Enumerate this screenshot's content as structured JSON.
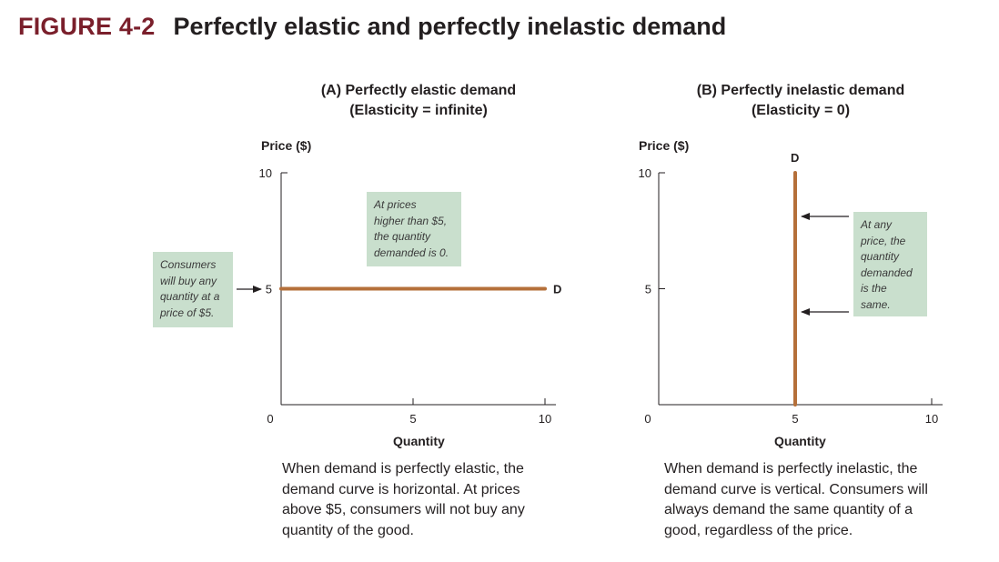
{
  "figure": {
    "label": "FIGURE 4-2",
    "title": "Perfectly elastic and perfectly inelastic demand"
  },
  "colors": {
    "curve": "#b5703a",
    "annotation_box": "#c9dfcd",
    "figure_label": "#7a1f2b"
  },
  "chart_data": [
    {
      "type": "line",
      "title": "(A) Perfectly elastic demand",
      "subtitle": "(Elasticity = infinite)",
      "ylabel": "Price ($)",
      "xlabel": "Quantity",
      "xlim": [
        0,
        10
      ],
      "ylim": [
        0,
        10
      ],
      "xticks": [
        "0",
        "5",
        "10"
      ],
      "yticks": [
        "5",
        "10"
      ],
      "series": [
        {
          "name": "D",
          "x": [
            0,
            10
          ],
          "y": [
            5,
            5
          ]
        }
      ],
      "annotations": [
        "At prices higher than $5, the quantity demanded is 0.",
        "Consumers will buy any quantity at a price of $5."
      ],
      "caption": "When demand is perfectly elastic, the demand curve is horizontal. At prices above $5, consumers will not buy any quantity of the good."
    },
    {
      "type": "line",
      "title": "(B) Perfectly inelastic demand",
      "subtitle": "(Elasticity = 0)",
      "ylabel": "Price ($)",
      "xlabel": "Quantity",
      "xlim": [
        0,
        10
      ],
      "ylim": [
        0,
        10
      ],
      "xticks": [
        "0",
        "5",
        "10"
      ],
      "yticks": [
        "5",
        "10"
      ],
      "series": [
        {
          "name": "D",
          "x": [
            5,
            5
          ],
          "y": [
            0,
            10
          ]
        }
      ],
      "annotations": [
        "At any price, the quantity demanded is the same."
      ],
      "caption": "When demand is perfectly inelastic, the demand curve is vertical. Consumers will always demand the same quantity of a good, regardless of the price."
    }
  ],
  "notes": {
    "a_box_lines": [
      "At prices",
      "higher than $5,",
      "the quantity",
      "demanded is 0."
    ],
    "a_side_lines": [
      "Consumers",
      "will buy any",
      "quantity at a",
      "price of $5."
    ],
    "b_box_lines": [
      "At any",
      "price, the",
      "quantity",
      "demanded",
      "is the",
      "same."
    ]
  },
  "caption_lines": {
    "a": [
      "When demand is perfectly elastic, the",
      "demand curve is horizontal. At prices",
      "above $5, consumers will not buy any",
      "quantity of the good."
    ],
    "b": [
      "When demand is perfectly inelastic, the",
      "demand curve is vertical. Consumers will",
      "always demand the same quantity of a",
      "good, regardless of the price."
    ]
  }
}
